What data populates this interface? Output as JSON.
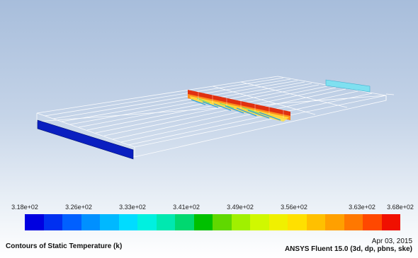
{
  "legend": {
    "ticks": [
      "3.18e+02",
      "3.26e+02",
      "3.33e+02",
      "3.41e+02",
      "3.49e+02",
      "3.56e+02",
      "3.63e+02",
      "3.68e+02"
    ],
    "colors": [
      "#0000e0",
      "#0030f0",
      "#0060ff",
      "#0090ff",
      "#00b8ff",
      "#00dcff",
      "#00f0e0",
      "#00e8b0",
      "#00d870",
      "#00c000",
      "#60d800",
      "#a0f000",
      "#d0f800",
      "#f0f000",
      "#ffe000",
      "#ffc000",
      "#ffa000",
      "#ff7800",
      "#ff4800",
      "#f01000"
    ]
  },
  "caption": {
    "title": "Contours of Static Temperature (k)",
    "date": "Apr 03, 2015",
    "solver": "ANSYS Fluent 15.0 (3d, dp, pbns, ske)"
  },
  "model": {
    "inlet_color": "#0a1fc0",
    "outlet_color": "#7fe0f0",
    "heater_colors": [
      "#e03010",
      "#ff9a20",
      "#ffe040",
      "#70e070",
      "#30a0e0"
    ]
  }
}
